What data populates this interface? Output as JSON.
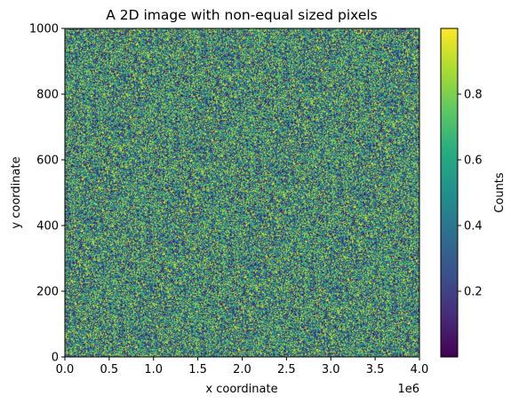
{
  "chart_data": {
    "type": "heatmap",
    "title": "A 2D image with non-equal sized pixels",
    "xlabel": "x coordinate",
    "ylabel": "y coordinate",
    "x_offset_label": "1e6",
    "xlim": [
      0.0,
      4.0
    ],
    "ylim": [
      0,
      1000
    ],
    "x_ticks": [
      "0.0",
      "0.5",
      "1.0",
      "1.5",
      "2.0",
      "2.5",
      "3.0",
      "3.5",
      "4.0"
    ],
    "y_ticks": [
      "0",
      "200",
      "400",
      "600",
      "800",
      "1000"
    ],
    "colorbar": {
      "label": "Counts",
      "ticks": [
        "0.2",
        "0.4",
        "0.6",
        "0.8"
      ],
      "range": [
        0.0,
        1.0
      ],
      "colormap": "viridis"
    },
    "values": "uniform random noise in [0, 1]",
    "colors": {
      "viridis_low": "#440154",
      "viridis_mid": "#21918c",
      "viridis_high": "#fde725"
    }
  }
}
